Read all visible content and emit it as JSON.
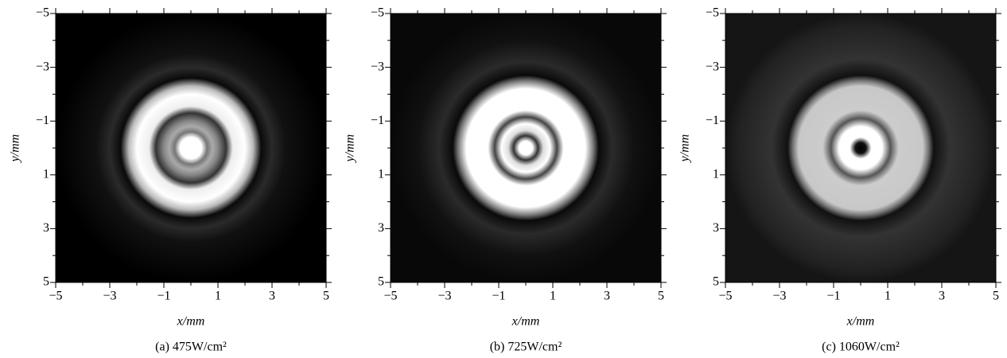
{
  "chart_data": [
    {
      "type": "image",
      "xlabel": "x/mm",
      "ylabel": "y/mm",
      "caption": "(a) 475W/cm²",
      "xlim": [
        -5,
        5
      ],
      "ylim": [
        -5,
        5
      ],
      "y_inverted": true,
      "xticks": [
        {
          "value": -5,
          "label": "−5"
        },
        {
          "value": -3,
          "label": "−3"
        },
        {
          "value": -1,
          "label": "−1"
        },
        1,
        3,
        5
      ],
      "yticks": [
        {
          "value": -5,
          "label": "−5"
        },
        {
          "value": -3,
          "label": "−3"
        },
        {
          "value": -1,
          "label": "−1"
        },
        1,
        3,
        5
      ],
      "minor_ticks": [
        -4,
        -2,
        0,
        2,
        4
      ]
    },
    {
      "type": "image",
      "xlabel": "x/mm",
      "ylabel": "y/mm",
      "caption": "(b) 725W/cm²",
      "xlim": [
        -5,
        5
      ],
      "ylim": [
        -5,
        5
      ],
      "y_inverted": true,
      "xticks": [
        {
          "value": -5,
          "label": "−5"
        },
        {
          "value": -3,
          "label": "−3"
        },
        {
          "value": -1,
          "label": "−1"
        },
        1,
        3,
        5
      ],
      "yticks": [
        {
          "value": -5,
          "label": "−5"
        },
        {
          "value": -3,
          "label": "−3"
        },
        {
          "value": -1,
          "label": "−1"
        },
        1,
        3,
        5
      ],
      "minor_ticks": [
        -4,
        -2,
        0,
        2,
        4
      ]
    },
    {
      "type": "image",
      "xlabel": "x/mm",
      "ylabel": "y/mm",
      "caption": "(c) 1060W/cm²",
      "xlim": [
        -5,
        5
      ],
      "ylim": [
        -5,
        5
      ],
      "y_inverted": true,
      "xticks": [
        {
          "value": -5,
          "label": "−5"
        },
        {
          "value": -3,
          "label": "−3"
        },
        {
          "value": -1,
          "label": "−1"
        },
        1,
        3,
        5
      ],
      "yticks": [
        {
          "value": -5,
          "label": "−5"
        },
        {
          "value": -3,
          "label": "−3"
        },
        {
          "value": -1,
          "label": "−1"
        },
        1,
        3,
        5
      ],
      "minor_ticks": [
        -4,
        -2,
        0,
        2,
        4
      ]
    }
  ]
}
